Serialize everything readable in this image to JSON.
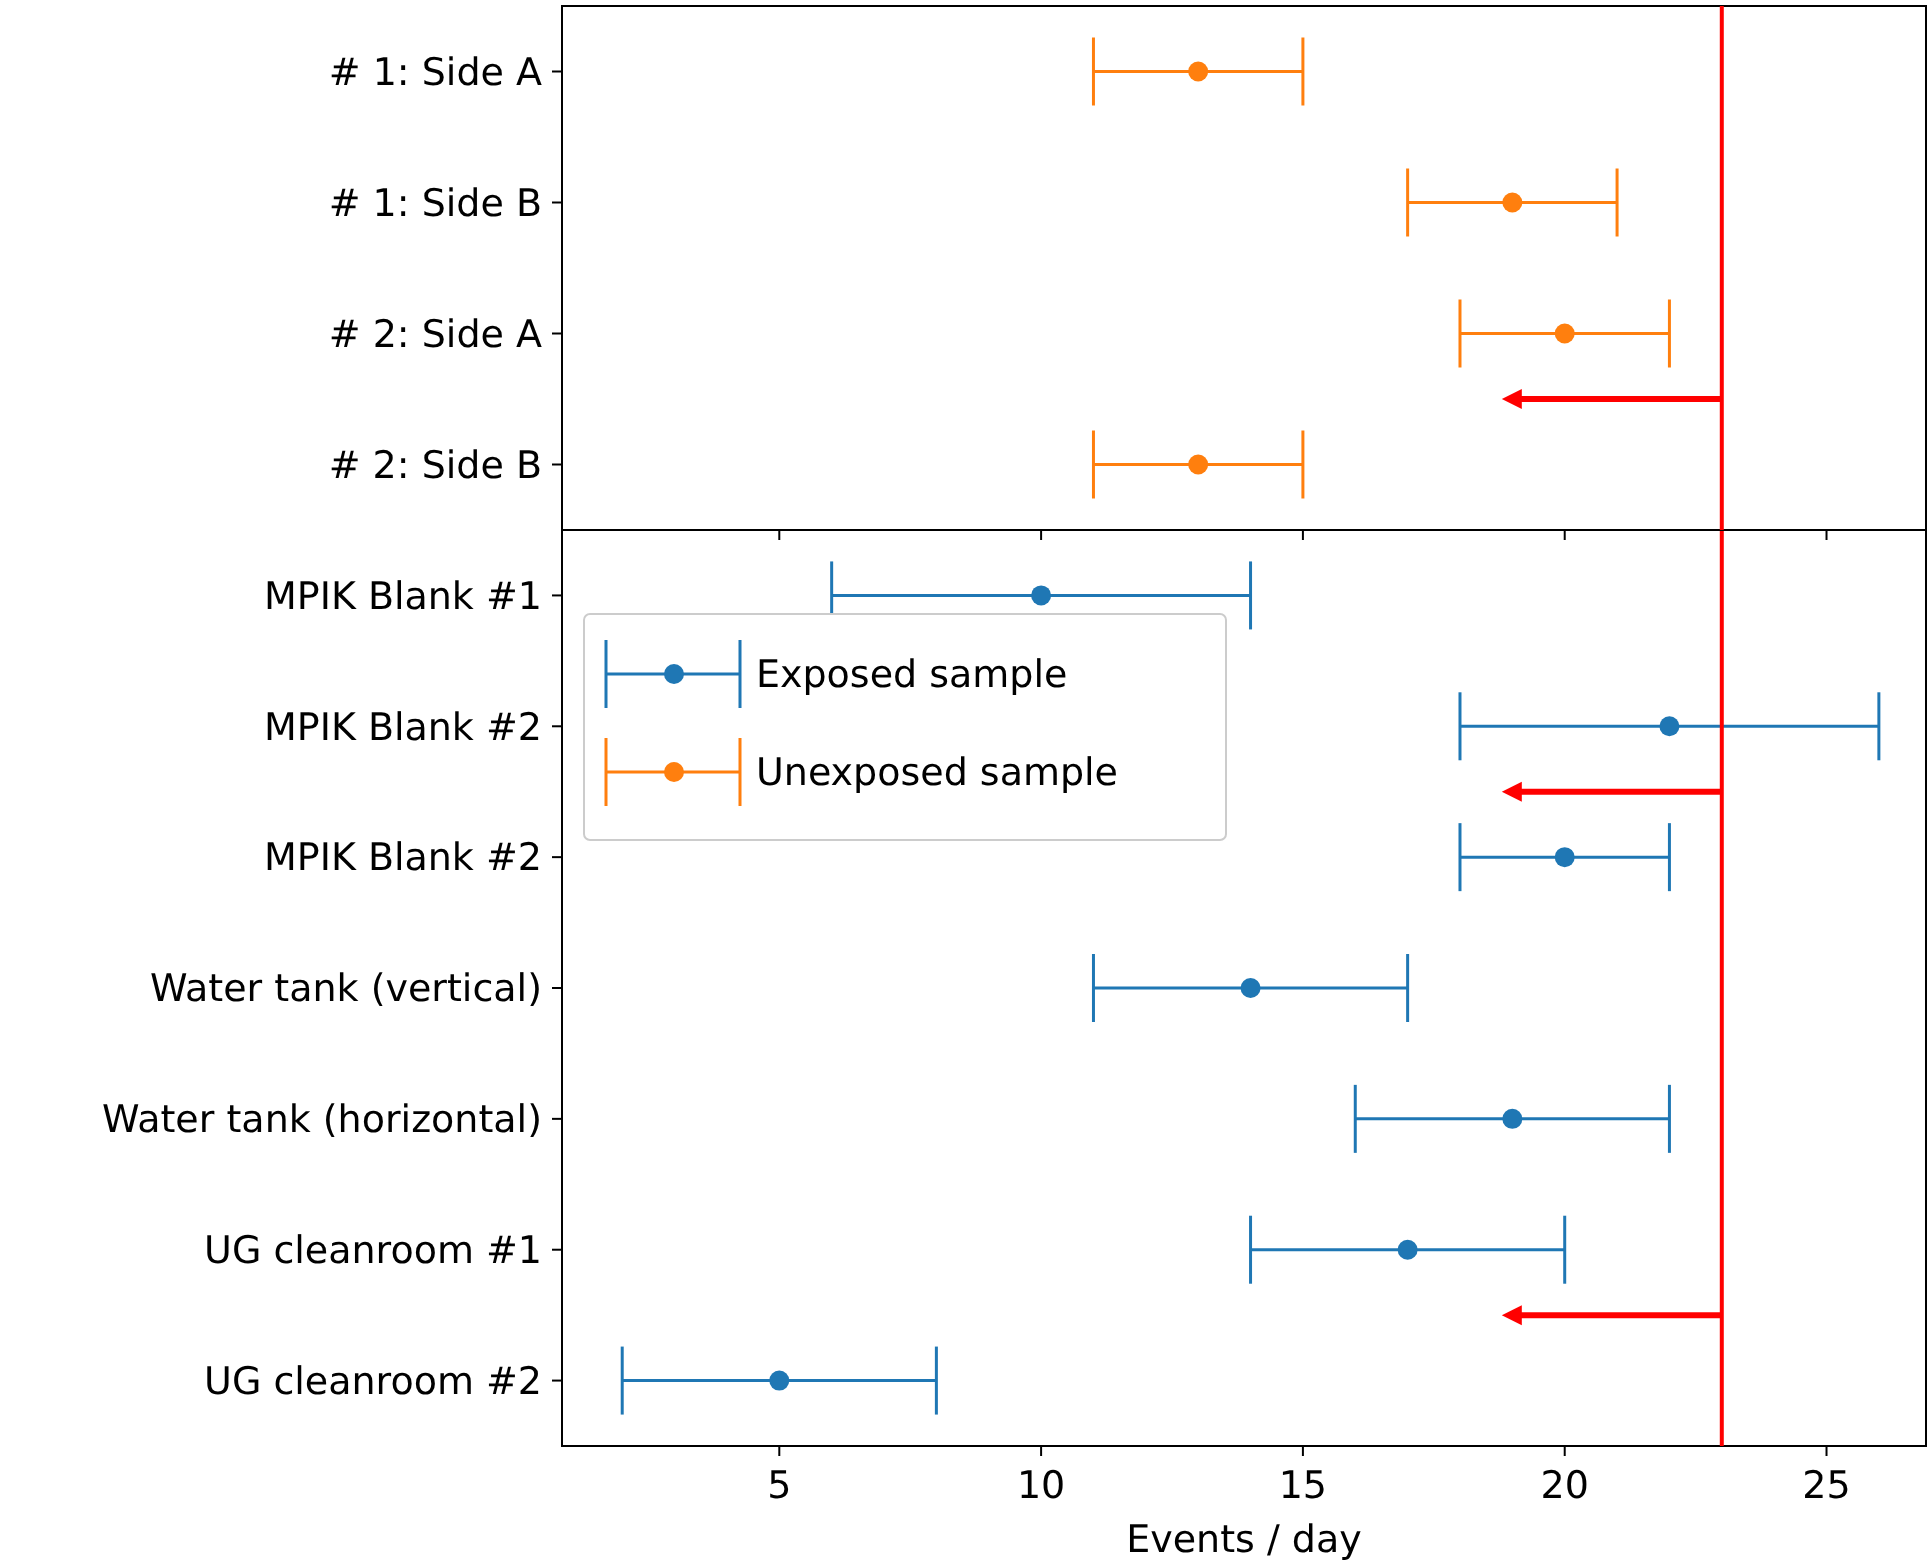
{
  "chart_data": [
    {
      "type": "scatter",
      "orientation": "horizontal",
      "categories": [
        "# 1: Side A",
        "# 1: Side B",
        "# 2: Side A",
        "# 2: Side B"
      ],
      "series": [
        {
          "name": "Unexposed sample",
          "color": "#ff7f0e",
          "values": [
            13,
            19,
            20,
            13
          ],
          "errors": [
            2,
            2,
            2,
            2
          ]
        }
      ],
      "xlim": [
        0.85,
        26.9
      ],
      "xticks": [
        5,
        10,
        15,
        20,
        25
      ],
      "tick_labels": "y",
      "marker": "circle",
      "legend": "bottom left",
      "ref_lines": [
        {
          "axis": "x",
          "value": 23,
          "color": "#ff0000"
        }
      ]
    },
    {
      "type": "scatter",
      "orientation": "horizontal",
      "categories": [
        "MPIK Blank #1",
        "MPIK Blank #2",
        "MPIK Blank #2",
        "Water tank (vertical)",
        "Water tank (horizontal)",
        "UG cleanroom #1",
        "UG cleanroom #2"
      ],
      "series": [
        {
          "name": "Exposed sample",
          "color": "#1f77b4",
          "values": [
            10,
            22,
            20,
            14,
            19,
            17,
            5
          ],
          "errors": [
            4,
            4,
            2,
            3,
            3,
            3,
            3
          ]
        }
      ],
      "xlim": [
        0.85,
        26.9
      ],
      "xticks": [
        5,
        10,
        15,
        20,
        25
      ],
      "xlabel": "Events / day",
      "marker": "circle",
      "legend": "top left",
      "ref_lines": [
        {
          "axis": "x",
          "value": 23,
          "color": "#ff0000"
        }
      ]
    }
  ]
}
